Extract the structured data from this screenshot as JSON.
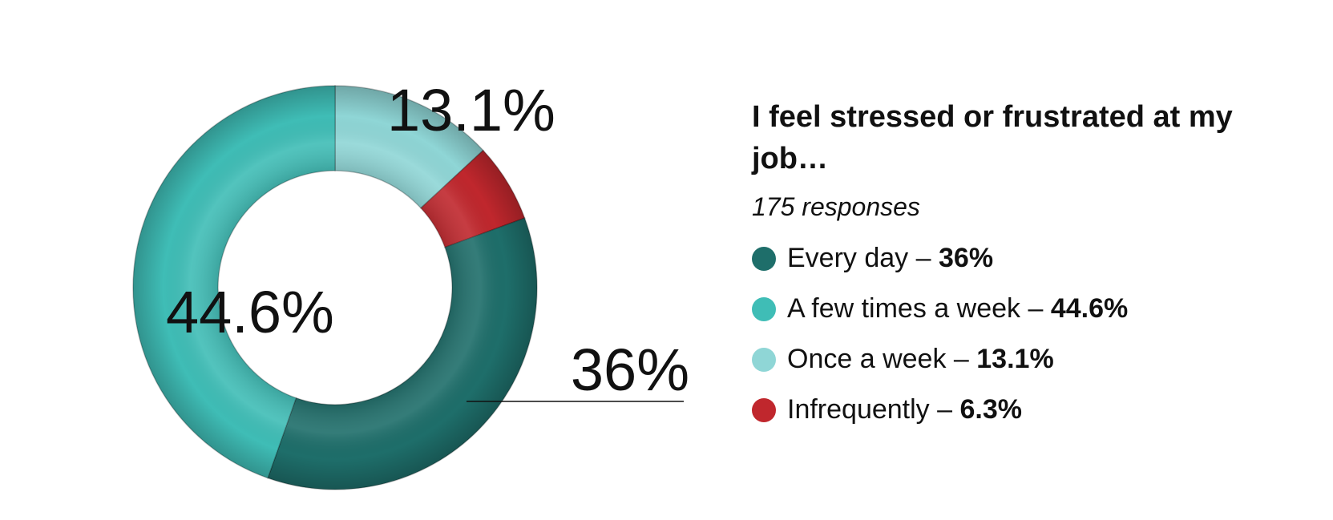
{
  "chart_data": {
    "type": "pie",
    "donut": true,
    "title": "I feel stressed or frustrated at my job…",
    "subtitle": "175 responses",
    "slices": [
      {
        "name": "Every day",
        "value": 36,
        "label": "36%",
        "legend_value": "36%",
        "color": "#1e6e6a"
      },
      {
        "name": "A few times a week",
        "value": 44.6,
        "label": "44.6%",
        "legend_value": "44.6%",
        "color": "#3fbdb6"
      },
      {
        "name": "Once a week",
        "value": 13.1,
        "label": "13.1%",
        "legend_value": "13.1%",
        "color": "#8fd6d6"
      },
      {
        "name": "Infrequently",
        "value": 6.3,
        "label": "",
        "legend_value": "6.3%",
        "color": "#c0272d"
      }
    ],
    "legend_position": "right",
    "legend_separator": " – "
  }
}
